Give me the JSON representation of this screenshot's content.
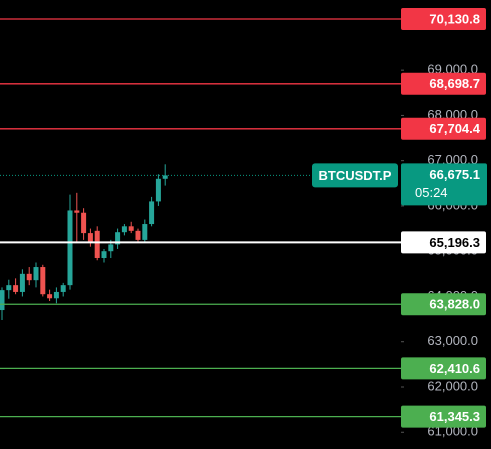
{
  "chart_data": {
    "type": "candlestick",
    "open": [
      63700,
      64140,
      64250,
      64100,
      64500,
      64360,
      64650,
      64050,
      63960,
      64100,
      64250,
      65900,
      65850,
      65400,
      65450,
      64850,
      65000,
      65150,
      65420,
      65550,
      65450,
      65250,
      65600,
      66100,
      66600
    ],
    "high": [
      64200,
      64370,
      64400,
      64600,
      64650,
      64750,
      64700,
      64150,
      64200,
      64300,
      66250,
      66290,
      65950,
      65500,
      65550,
      65050,
      65250,
      65500,
      65600,
      65650,
      65500,
      65700,
      66200,
      66700,
      66920
    ],
    "low": [
      63480,
      63950,
      64050,
      64000,
      64250,
      64200,
      64000,
      63900,
      63850,
      64000,
      64150,
      65200,
      65250,
      65100,
      64800,
      64750,
      64850,
      65050,
      65350,
      65400,
      65200,
      65200,
      65550,
      66000,
      66450
    ],
    "close": [
      64140,
      64250,
      64100,
      64500,
      64360,
      64650,
      64050,
      63960,
      64100,
      64250,
      65900,
      65850,
      65400,
      65200,
      64850,
      65000,
      65150,
      65420,
      65550,
      65450,
      65250,
      65600,
      66100,
      66600,
      66675.1
    ],
    "up_color": "#26a69a",
    "down_color": "#ef5350",
    "ylim": [
      60630,
      70550
    ],
    "yticks": [
      {
        "value": 61000,
        "label": "61,000.0"
      },
      {
        "value": 62000,
        "label": "62,000.0"
      },
      {
        "value": 63000,
        "label": "63,000.0"
      },
      {
        "value": 64000,
        "label": "64,000.0"
      },
      {
        "value": 65000,
        "label": "65,000.0"
      },
      {
        "value": 66000,
        "label": "66,000.0"
      },
      {
        "value": 67000,
        "label": "67,000.0"
      },
      {
        "value": 68000,
        "label": "68,000.0"
      },
      {
        "value": 69000,
        "label": "69,000.0"
      }
    ],
    "price_lines": [
      {
        "value": 70130.8,
        "label": "70,130.8",
        "color": "#f23645",
        "text_color": "#ffffff"
      },
      {
        "value": 68698.7,
        "label": "68,698.7",
        "color": "#f23645",
        "text_color": "#ffffff"
      },
      {
        "value": 67704.4,
        "label": "67,704.4",
        "color": "#f23645",
        "text_color": "#ffffff"
      },
      {
        "value": 65196.3,
        "label": "65,196.3",
        "color": "#ffffff",
        "text_color": "#000000"
      },
      {
        "value": 63828.0,
        "label": "63,828.0",
        "color": "#4caf50",
        "text_color": "#ffffff"
      },
      {
        "value": 62410.6,
        "label": "62,410.6",
        "color": "#4caf50",
        "text_color": "#ffffff"
      },
      {
        "value": 61345.3,
        "label": "61,345.3",
        "color": "#4caf50",
        "text_color": "#ffffff"
      }
    ],
    "current_price": {
      "value": 66675.1,
      "label": "66,675.1",
      "symbol": "BTCUSDT.P",
      "countdown": "05:24",
      "color": "#089981"
    }
  }
}
